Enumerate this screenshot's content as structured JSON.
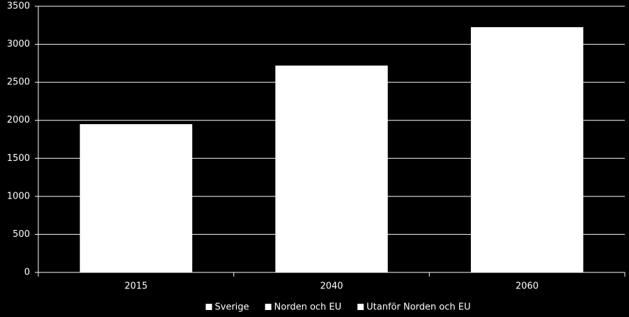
{
  "chart_data": {
    "type": "bar",
    "stacked": true,
    "categories": [
      "2015",
      "2040",
      "2060"
    ],
    "series": [
      {
        "name": "Sverige",
        "color": "#ffffff",
        "values": [
          1950,
          2720,
          3225
        ]
      },
      {
        "name": "Norden och EU",
        "color": "#ffffff",
        "values": [
          null,
          null,
          null
        ]
      },
      {
        "name": "Utanför Norden och EU",
        "color": "#ffffff",
        "values": [
          null,
          null,
          null
        ]
      }
    ],
    "ylim": [
      0,
      3500
    ],
    "yticks": [
      0,
      500,
      1000,
      1500,
      2000,
      2500,
      3000,
      3500
    ],
    "grid": true,
    "legend": "bottom"
  }
}
